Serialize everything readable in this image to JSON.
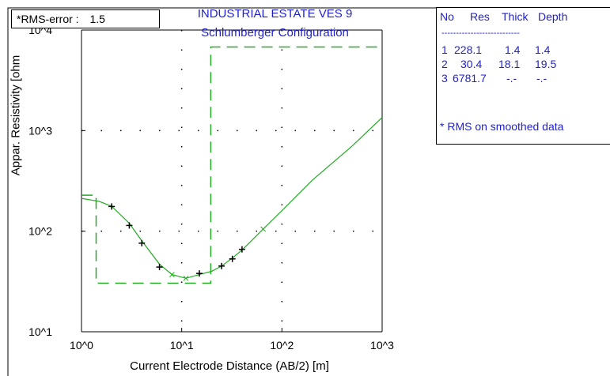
{
  "rms": {
    "label": "*RMS-error :",
    "value": "1.5"
  },
  "title_line1": "INDUSTRIAL ESTATE VES 9",
  "title_line2": "Schlumberger Configuration",
  "colors": {
    "accent": "#1f1fd0",
    "curve": "#22aa22",
    "frame": "#000000"
  },
  "chart_data": {
    "type": "line",
    "title": "INDUSTRIAL ESTATE VES 9",
    "subtitle": "Schlumberger Configuration",
    "xlabel": "Current Electrode Distance (AB/2) [m]",
    "ylabel": "Appar. Resistivity [ohm",
    "x_scale": "log",
    "y_scale": "log",
    "xlim": [
      1,
      1000
    ],
    "ylim": [
      10,
      10000
    ],
    "x_tick_labels": [
      "10^0",
      "10^1",
      "10^2",
      "10^3"
    ],
    "y_tick_labels": [
      "10^1",
      "10^2",
      "10^3",
      "10^4"
    ],
    "grid": true,
    "observed_points": [
      {
        "x": 2.0,
        "y": 176
      },
      {
        "x": 3.0,
        "y": 114
      },
      {
        "x": 4.0,
        "y": 76
      },
      {
        "x": 6.0,
        "y": 44
      },
      {
        "x": 15.0,
        "y": 38
      },
      {
        "x": 25.0,
        "y": 45
      },
      {
        "x": 32.0,
        "y": 53
      },
      {
        "x": 40.0,
        "y": 66
      }
    ],
    "calculated_points": [
      {
        "x": 8.0,
        "y": 37
      },
      {
        "x": 11.0,
        "y": 34
      },
      {
        "x": 65.0,
        "y": 105
      }
    ],
    "fitted_curve": [
      {
        "x": 1.0,
        "y": 212
      },
      {
        "x": 1.5,
        "y": 198
      },
      {
        "x": 2.0,
        "y": 177
      },
      {
        "x": 3.0,
        "y": 120
      },
      {
        "x": 4.0,
        "y": 80
      },
      {
        "x": 6.0,
        "y": 47
      },
      {
        "x": 8.0,
        "y": 37
      },
      {
        "x": 11.0,
        "y": 34
      },
      {
        "x": 15.0,
        "y": 37
      },
      {
        "x": 20.0,
        "y": 40
      },
      {
        "x": 25.0,
        "y": 45
      },
      {
        "x": 32.0,
        "y": 54
      },
      {
        "x": 40.0,
        "y": 65
      },
      {
        "x": 65.0,
        "y": 105
      },
      {
        "x": 100.0,
        "y": 160
      },
      {
        "x": 200.0,
        "y": 320
      },
      {
        "x": 500.0,
        "y": 700
      },
      {
        "x": 1000.0,
        "y": 1350
      }
    ],
    "layer_model_steps": [
      {
        "x": 1.0,
        "y": 228.1
      },
      {
        "x": 1.4,
        "y": 228.1
      },
      {
        "x": 1.4,
        "y": 30.4
      },
      {
        "x": 19.5,
        "y": 30.4
      },
      {
        "x": 19.5,
        "y": 6781.7
      },
      {
        "x": 1000.0,
        "y": 6781.7
      }
    ]
  },
  "model_table": {
    "headers": [
      "No",
      "Res",
      "Thick",
      "Depth"
    ],
    "separator": "---------------------------",
    "rows": [
      {
        "no": "1",
        "res": "228.1",
        "thick": "1.4",
        "depth": "1.4"
      },
      {
        "no": "2",
        "res": "30.4",
        "thick": "18.1",
        "depth": "19.5"
      },
      {
        "no": "3",
        "res": "6781.7",
        "thick": "-.-",
        "depth": "-.-"
      }
    ],
    "note": "* RMS on smoothed data"
  }
}
